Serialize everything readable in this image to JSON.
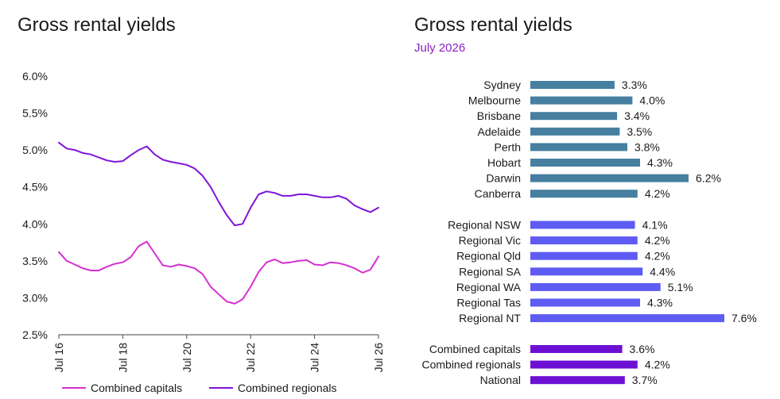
{
  "chart_data": [
    {
      "type": "line",
      "title": "Gross rental yields",
      "xlabel": "",
      "ylabel": "",
      "ylim": [
        2.5,
        6.0
      ],
      "y_ticks": [
        "2.5%",
        "3.0%",
        "3.5%",
        "4.0%",
        "4.5%",
        "5.0%",
        "5.5%",
        "6.0%"
      ],
      "x_ticks": [
        "Jul 16",
        "Jul 18",
        "Jul 20",
        "Jul 22",
        "Jul 24",
        "Jul 26"
      ],
      "x_range": [
        "2016-07",
        "2026-07"
      ],
      "grid": false,
      "legend_position": "bottom",
      "x": [
        "2016-07",
        "2016-10",
        "2017-01",
        "2017-04",
        "2017-07",
        "2017-10",
        "2018-01",
        "2018-04",
        "2018-07",
        "2018-10",
        "2019-01",
        "2019-04",
        "2019-07",
        "2019-10",
        "2020-01",
        "2020-04",
        "2020-07",
        "2020-10",
        "2021-01",
        "2021-04",
        "2021-07",
        "2021-10",
        "2022-01",
        "2022-04",
        "2022-07",
        "2022-10",
        "2023-01",
        "2023-04",
        "2023-07",
        "2023-10",
        "2024-01",
        "2024-04",
        "2024-07",
        "2024-10",
        "2025-01",
        "2025-04",
        "2025-07",
        "2025-10",
        "2026-01",
        "2026-04",
        "2026-07"
      ],
      "series": [
        {
          "name": "Combined capitals",
          "color": "#d62fd0",
          "values": [
            3.62,
            3.5,
            3.45,
            3.4,
            3.37,
            3.37,
            3.42,
            3.46,
            3.48,
            3.55,
            3.7,
            3.76,
            3.6,
            3.44,
            3.42,
            3.45,
            3.43,
            3.4,
            3.32,
            3.15,
            3.05,
            2.95,
            2.92,
            2.98,
            3.15,
            3.35,
            3.48,
            3.52,
            3.47,
            3.48,
            3.5,
            3.51,
            3.45,
            3.44,
            3.48,
            3.47,
            3.44,
            3.4,
            3.34,
            3.38,
            3.56
          ]
        },
        {
          "name": "Combined regionals",
          "color": "#7e14d8",
          "values": [
            5.1,
            5.02,
            5.0,
            4.96,
            4.94,
            4.9,
            4.86,
            4.84,
            4.85,
            4.93,
            5.0,
            5.05,
            4.94,
            4.87,
            4.84,
            4.82,
            4.8,
            4.75,
            4.65,
            4.5,
            4.3,
            4.12,
            3.98,
            4.0,
            4.22,
            4.4,
            4.44,
            4.42,
            4.38,
            4.38,
            4.4,
            4.4,
            4.38,
            4.36,
            4.36,
            4.38,
            4.34,
            4.25,
            4.2,
            4.16,
            4.22
          ]
        }
      ]
    },
    {
      "type": "bar",
      "title": "Gross rental yields",
      "subtitle": "July 2026",
      "orientation": "horizontal",
      "xlim": [
        0,
        8.0
      ],
      "groups": [
        {
          "color": "#467f9f",
          "categories": [
            "Sydney",
            "Melbourne",
            "Brisbane",
            "Adelaide",
            "Perth",
            "Hobart",
            "Darwin",
            "Canberra"
          ],
          "values": [
            3.3,
            4.0,
            3.4,
            3.5,
            3.8,
            4.3,
            6.2,
            4.2
          ],
          "labels": [
            "3.3%",
            "4.0%",
            "3.4%",
            "3.5%",
            "3.8%",
            "4.3%",
            "6.2%",
            "4.2%"
          ]
        },
        {
          "color": "#5e5cf2",
          "categories": [
            "Regional NSW",
            "Regional Vic",
            "Regional Qld",
            "Regional SA",
            "Regional WA",
            "Regional Tas",
            "Regional NT"
          ],
          "values": [
            4.1,
            4.2,
            4.2,
            4.4,
            5.1,
            4.3,
            7.6
          ],
          "labels": [
            "4.1%",
            "4.2%",
            "4.2%",
            "4.4%",
            "5.1%",
            "4.3%",
            "7.6%"
          ]
        },
        {
          "color": "#6e10d4",
          "categories": [
            "Combined capitals",
            "Combined regionals",
            "National"
          ],
          "values": [
            3.6,
            4.2,
            3.7
          ],
          "labels": [
            "3.6%",
            "4.2%",
            "3.7%"
          ]
        }
      ]
    }
  ]
}
